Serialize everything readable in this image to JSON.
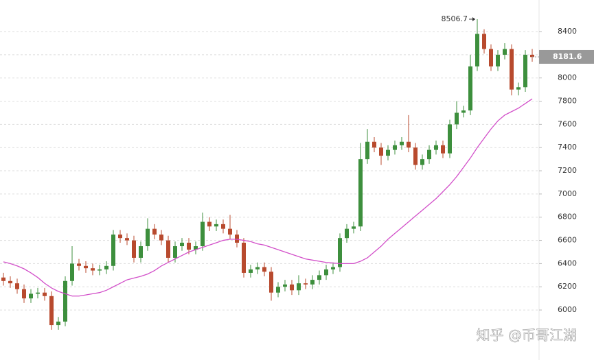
{
  "chart_data": {
    "type": "candlestick",
    "ylim": [
      5569,
      8672
    ],
    "yticks": [
      6000,
      6200,
      6400,
      6600,
      6800,
      7000,
      7200,
      7400,
      7600,
      7800,
      8000,
      8200,
      8400
    ],
    "grid": true,
    "up_color": "#3d8f3d",
    "down_color": "#b84a2e",
    "ma_color": "#d24fc9",
    "last_price": 8181.6,
    "watermark": "知乎 @币哥江湖",
    "open": [
      6280,
      6250,
      6230,
      6180,
      6100,
      6140,
      6150,
      6120,
      5870,
      5900,
      6250,
      6400,
      6380,
      6360,
      6340,
      6350,
      6380,
      6650,
      6620,
      6600,
      6450,
      6550,
      6700,
      6650,
      6600,
      6450,
      6550,
      6580,
      6520,
      6550,
      6760,
      6720,
      6740,
      6700,
      6650,
      6580,
      6320,
      6350,
      6370,
      6330,
      6150,
      6200,
      6220,
      6170,
      6230,
      6220,
      6260,
      6300,
      6350,
      6370,
      6620,
      6700,
      6720,
      7300,
      7450,
      7400,
      7330,
      7380,
      7420,
      7450,
      7400,
      7250,
      7300,
      7380,
      7420,
      7350,
      7600,
      7700,
      7720,
      8100,
      8380,
      8250,
      8100,
      8200,
      8250,
      7900,
      7920,
      8200
    ],
    "high": [
      6320,
      6290,
      6270,
      6220,
      6180,
      6190,
      6190,
      6160,
      5940,
      6290,
      6550,
      6440,
      6420,
      6400,
      6390,
      6420,
      6690,
      6690,
      6660,
      6640,
      6590,
      6790,
      6740,
      6690,
      6640,
      6590,
      6620,
      6620,
      6590,
      6840,
      6800,
      6780,
      6780,
      6820,
      6690,
      6620,
      6390,
      6410,
      6410,
      6370,
      6240,
      6260,
      6260,
      6300,
      6270,
      6300,
      6340,
      6390,
      6410,
      6660,
      6740,
      6760,
      7440,
      7560,
      7490,
      7440,
      7420,
      7460,
      7490,
      7680,
      7440,
      7340,
      7420,
      7460,
      7460,
      7640,
      7800,
      7760,
      8200,
      8506.7,
      8420,
      8290,
      8240,
      8300,
      8290,
      7960,
      8240,
      8250
    ],
    "low": [
      6210,
      6190,
      6140,
      6060,
      6060,
      6100,
      6080,
      5830,
      5830,
      5860,
      6210,
      6340,
      6320,
      6300,
      6300,
      6310,
      6340,
      6580,
      6560,
      6410,
      6410,
      6510,
      6610,
      6560,
      6410,
      6410,
      6510,
      6480,
      6480,
      6510,
      6680,
      6680,
      6660,
      6610,
      6540,
      6280,
      6280,
      6310,
      6290,
      6080,
      6110,
      6160,
      6130,
      6130,
      6180,
      6180,
      6220,
      6260,
      6310,
      6330,
      6580,
      6660,
      6680,
      7260,
      7360,
      7250,
      7290,
      7340,
      7380,
      7360,
      7210,
      7210,
      7260,
      7340,
      7310,
      7310,
      7560,
      7660,
      7680,
      8060,
      8210,
      8060,
      8060,
      8160,
      7850,
      7850,
      7880,
      8140
    ],
    "close": [
      6250,
      6230,
      6180,
      6100,
      6140,
      6150,
      6120,
      5870,
      5900,
      6250,
      6400,
      6380,
      6360,
      6340,
      6350,
      6380,
      6650,
      6620,
      6600,
      6450,
      6550,
      6700,
      6650,
      6600,
      6450,
      6550,
      6580,
      6520,
      6550,
      6760,
      6720,
      6740,
      6700,
      6650,
      6580,
      6320,
      6350,
      6370,
      6330,
      6150,
      6200,
      6220,
      6170,
      6230,
      6220,
      6260,
      6300,
      6350,
      6370,
      6620,
      6700,
      6720,
      7300,
      7450,
      7400,
      7330,
      7380,
      7420,
      7450,
      7400,
      7250,
      7300,
      7380,
      7420,
      7350,
      7600,
      7700,
      7720,
      8100,
      8380,
      8250,
      8100,
      8200,
      8250,
      7900,
      7920,
      8200,
      8180
    ],
    "ma": [
      6415,
      6400,
      6380,
      6355,
      6320,
      6280,
      6230,
      6190,
      6160,
      6140,
      6120,
      6120,
      6130,
      6140,
      6150,
      6170,
      6200,
      6230,
      6260,
      6275,
      6290,
      6310,
      6340,
      6380,
      6410,
      6440,
      6470,
      6500,
      6520,
      6540,
      6560,
      6580,
      6600,
      6610,
      6610,
      6600,
      6590,
      6570,
      6560,
      6540,
      6520,
      6500,
      6480,
      6460,
      6440,
      6430,
      6420,
      6410,
      6405,
      6400,
      6400,
      6400,
      6420,
      6450,
      6500,
      6550,
      6610,
      6660,
      6710,
      6760,
      6810,
      6860,
      6910,
      6960,
      7020,
      7080,
      7150,
      7230,
      7310,
      7400,
      7480,
      7560,
      7630,
      7680,
      7710,
      7740,
      7780,
      7820
    ]
  }
}
